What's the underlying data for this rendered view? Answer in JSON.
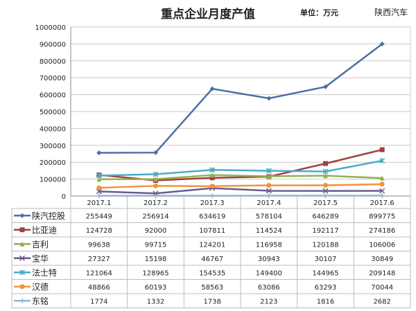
{
  "chart_data": {
    "type": "line",
    "title": "重点企业月度产值",
    "unit_label": "单位：万元",
    "categories": [
      "2017.1",
      "2017.2",
      "2017.3",
      "2017.4",
      "2017.5",
      "2017.6"
    ],
    "ylim": [
      0,
      1000000
    ],
    "yticks": [
      0,
      100000,
      200000,
      300000,
      400000,
      500000,
      600000,
      700000,
      800000,
      900000,
      1000000
    ],
    "grid": true,
    "legend": "data-table",
    "series": [
      {
        "name": "陕汽控股",
        "color": "#4a6fa5",
        "marker": "diamond",
        "values": [
          255449,
          256914,
          634619,
          578104,
          646289,
          899775
        ]
      },
      {
        "name": "比亚迪",
        "color": "#a0413c",
        "marker": "square",
        "values": [
          124728,
          92000,
          107811,
          114524,
          192117,
          274186
        ]
      },
      {
        "name": "吉利",
        "color": "#93b050",
        "marker": "triangle",
        "values": [
          99638,
          99715,
          124201,
          116958,
          120188,
          106006
        ]
      },
      {
        "name": "宝华",
        "color": "#6b5a8c",
        "marker": "x",
        "values": [
          27327,
          15198,
          46767,
          30943,
          30107,
          30849
        ]
      },
      {
        "name": "法士特",
        "color": "#4aacc5",
        "marker": "star",
        "values": [
          121064,
          128965,
          154535,
          149400,
          144965,
          209148
        ]
      },
      {
        "name": "汉德",
        "color": "#f0953a",
        "marker": "circle",
        "values": [
          48866,
          60193,
          58563,
          63086,
          63293,
          70044
        ]
      },
      {
        "name": "东铭",
        "color": "#95b3d7",
        "marker": "plus",
        "values": [
          1774,
          1332,
          1738,
          2123,
          1816,
          2682
        ]
      }
    ]
  },
  "watermark": "陕西汽车"
}
